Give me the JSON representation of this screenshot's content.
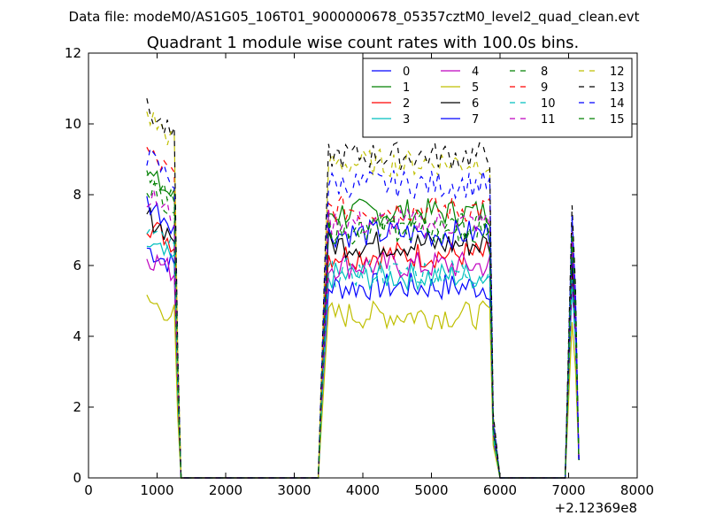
{
  "figure": {
    "suptitle": "Data file: modeM0/AS1G05_106T01_9000000678_05357cztM0_level2_quad_clean.evt"
  },
  "chart_data": {
    "type": "line",
    "title": "Quadrant 1 module wise count rates with 100.0s bins.",
    "xlabel": "",
    "ylabel": "",
    "x_offset_label": "+2.12369e8",
    "xlim": [
      0,
      8000
    ],
    "ylim": [
      0,
      12
    ],
    "xticks": [
      0,
      1000,
      2000,
      3000,
      4000,
      5000,
      6000,
      7000,
      8000
    ],
    "yticks": [
      0,
      2,
      4,
      6,
      8,
      10,
      12
    ],
    "grid": false,
    "legend_position": "top-right",
    "legend_columns": 4,
    "x_segments": [
      {
        "start": 850,
        "end": 1350
      },
      {
        "start": 1350,
        "end": 3350,
        "flat_zero": true
      },
      {
        "start": 3350,
        "end": 6050
      },
      {
        "start": 6050,
        "end": 6950,
        "flat_zero": true
      },
      {
        "start": 6950,
        "end": 7150
      }
    ],
    "series": [
      {
        "name": "0",
        "color": "#0000ff",
        "dash": "solid",
        "plateau1": 6.5,
        "plateau2": 5.4,
        "spike": 6.3
      },
      {
        "name": "1",
        "color": "#008000",
        "dash": "solid",
        "plateau1": 8.6,
        "plateau2": 7.5,
        "spike": 6.8
      },
      {
        "name": "2",
        "color": "#ff0000",
        "dash": "solid",
        "plateau1": 7.2,
        "plateau2": 6.3,
        "spike": 5.9
      },
      {
        "name": "3",
        "color": "#00bfbf",
        "dash": "solid",
        "plateau1": 6.6,
        "plateau2": 5.7,
        "spike": 5.4
      },
      {
        "name": "4",
        "color": "#bf00bf",
        "dash": "solid",
        "plateau1": 6.3,
        "plateau2": 6.0,
        "spike": 5.6
      },
      {
        "name": "5",
        "color": "#bfbf00",
        "dash": "solid",
        "plateau1": 5.0,
        "plateau2": 4.6,
        "spike": 4.4
      },
      {
        "name": "6",
        "color": "#000000",
        "dash": "solid",
        "plateau1": 7.4,
        "plateau2": 6.6,
        "spike": 6.1
      },
      {
        "name": "7",
        "color": "#0000ff",
        "dash": "solid",
        "plateau1": 7.8,
        "plateau2": 6.9,
        "spike": 6.5
      },
      {
        "name": "8",
        "color": "#008000",
        "dash": "dashed",
        "plateau1": 8.3,
        "plateau2": 7.1,
        "spike": 6.6
      },
      {
        "name": "9",
        "color": "#ff0000",
        "dash": "dashed",
        "plateau1": 9.2,
        "plateau2": 7.6,
        "spike": 7.0
      },
      {
        "name": "10",
        "color": "#00bfbf",
        "dash": "dashed",
        "plateau1": 7.0,
        "plateau2": 5.8,
        "spike": 5.6
      },
      {
        "name": "11",
        "color": "#bf00bf",
        "dash": "dashed",
        "plateau1": 8.0,
        "plateau2": 7.2,
        "spike": 6.7
      },
      {
        "name": "12",
        "color": "#bfbf00",
        "dash": "dashed",
        "plateau1": 10.3,
        "plateau2": 8.9,
        "spike": 7.2
      },
      {
        "name": "13",
        "color": "#000000",
        "dash": "dashed",
        "plateau1": 10.4,
        "plateau2": 9.1,
        "spike": 7.7
      },
      {
        "name": "14",
        "color": "#0000ff",
        "dash": "dashed",
        "plateau1": 9.1,
        "plateau2": 8.3,
        "spike": 7.4
      },
      {
        "name": "15",
        "color": "#008000",
        "dash": "dashed",
        "plateau1": 8.4,
        "plateau2": 7.0,
        "spike": 6.9
      }
    ]
  }
}
